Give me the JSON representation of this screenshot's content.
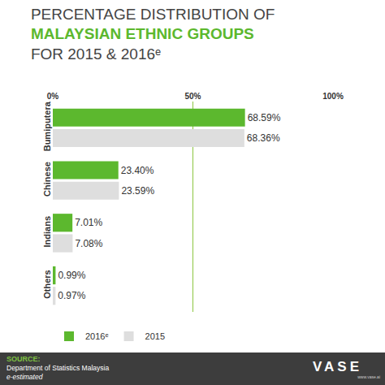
{
  "chart_data": {
    "type": "bar",
    "orientation": "horizontal",
    "title": [
      "PERCENTAGE DISTRIBUTION OF",
      "MALAYSIAN ETHNIC GROUPS",
      "FOR 2015 & 2016ᵉ"
    ],
    "categories": [
      "Bumiputera",
      "Chinese",
      "Indians",
      "Others"
    ],
    "series": [
      {
        "name": "2016ᵉ",
        "color": "#5cb82e",
        "values": [
          68.59,
          23.4,
          7.01,
          0.99
        ],
        "value_labels": [
          "68.59%",
          "23.40%",
          "7.01%",
          "0.99%"
        ]
      },
      {
        "name": "2015",
        "color": "#dedede",
        "values": [
          68.36,
          23.59,
          7.08,
          0.97
        ],
        "value_labels": [
          "68.36%",
          "23.59%",
          "7.08%",
          "0.97%"
        ]
      }
    ],
    "xlim": [
      0,
      100
    ],
    "xticks": [
      {
        "value": 0,
        "label": "0%"
      },
      {
        "value": 50,
        "label": "50%"
      },
      {
        "value": 100,
        "label": "100%"
      }
    ],
    "grid": true,
    "data_labels": true,
    "legend": "bottom left",
    "source": {
      "label": "SOURCE:",
      "lines": [
        "Department of Statistics Malaysia",
        "e-estimated"
      ]
    },
    "brand": "VASE",
    "website": "www.vase.ai"
  }
}
